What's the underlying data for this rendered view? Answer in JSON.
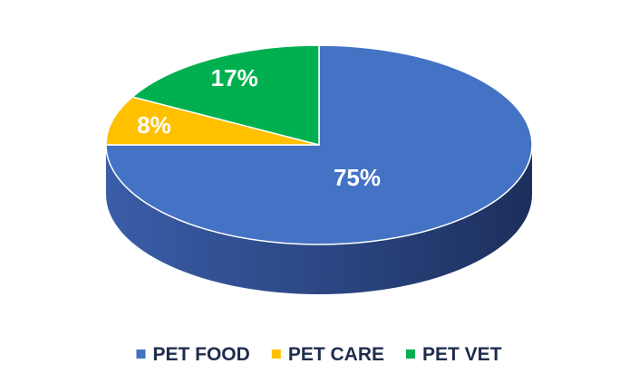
{
  "chart_data": {
    "type": "pie",
    "style": "3d",
    "legend_position": "bottom",
    "slices": [
      {
        "name": "PET FOOD",
        "value": 75,
        "label": "75%",
        "color": "#4472c4",
        "side_color": "#2c4a86"
      },
      {
        "name": "PET CARE",
        "value": 8,
        "label": "8%",
        "color": "#ffc000",
        "side_color": "#b38600"
      },
      {
        "name": "PET VET",
        "value": 17,
        "label": "17%",
        "color": "#00b050",
        "side_color": "#007a38"
      }
    ]
  }
}
